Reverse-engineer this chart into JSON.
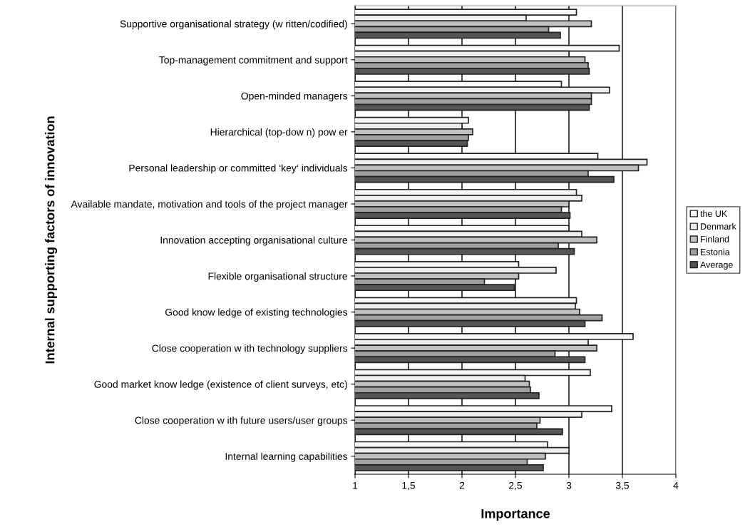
{
  "chart_data": {
    "type": "bar",
    "orientation": "horizontal",
    "xlabel": "Importance",
    "ylabel": "Internal supporting factors of innovation",
    "categories": [
      "Supportive organisational strategy (w ritten/codified)",
      "Top-management commitment and support",
      "Open-minded managers",
      "Hierarchical (top-dow n) pow er",
      "Personal leadership or committed ‘key‘ individuals",
      "Available mandate, motivation and tools of the project manager",
      "Innovation accepting organisational culture",
      "Flexible organisational structure",
      "Good know ledge of existing technologies",
      "Close cooperation w ith technology suppliers",
      "Good market know ledge (existence of client surveys, etc)",
      "Close cooperation w ith future users/user groups",
      "Internal learning capabilities"
    ],
    "series": [
      {
        "name": "the UK",
        "color": "#f8f8f8",
        "values": [
          3.07,
          3.47,
          2.93,
          2.06,
          3.27,
          3.07,
          3.0,
          2.53,
          3.07,
          3.6,
          3.2,
          3.4,
          2.8
        ]
      },
      {
        "name": "Denmark",
        "color": "#eeeeee",
        "values": [
          2.6,
          3.0,
          3.38,
          2.0,
          3.73,
          3.12,
          3.12,
          2.88,
          3.06,
          3.18,
          2.59,
          3.12,
          3.0
        ]
      },
      {
        "name": "Finland",
        "color": "#c0c0c0",
        "values": [
          3.21,
          3.15,
          3.21,
          2.1,
          3.65,
          3.0,
          3.26,
          2.53,
          3.1,
          3.26,
          2.63,
          2.73,
          2.78
        ]
      },
      {
        "name": "Estonia",
        "color": "#a0a0a0",
        "values": [
          2.81,
          3.18,
          3.21,
          2.06,
          3.18,
          2.93,
          2.9,
          2.21,
          3.31,
          2.87,
          2.64,
          2.7,
          2.61
        ]
      },
      {
        "name": "Average",
        "color": "#555555",
        "values": [
          2.92,
          3.19,
          3.19,
          2.05,
          3.42,
          3.01,
          3.05,
          2.49,
          3.15,
          3.15,
          2.72,
          2.94,
          2.76
        ]
      }
    ],
    "xlim": [
      1,
      4
    ],
    "xticks": [
      1,
      {
        "value": 1.5,
        "label": "1,5"
      },
      2,
      {
        "value": 2.5,
        "label": "2,5"
      },
      3,
      {
        "value": 3.5,
        "label": "3,5"
      },
      4
    ],
    "grid": "x",
    "legend": "right"
  }
}
